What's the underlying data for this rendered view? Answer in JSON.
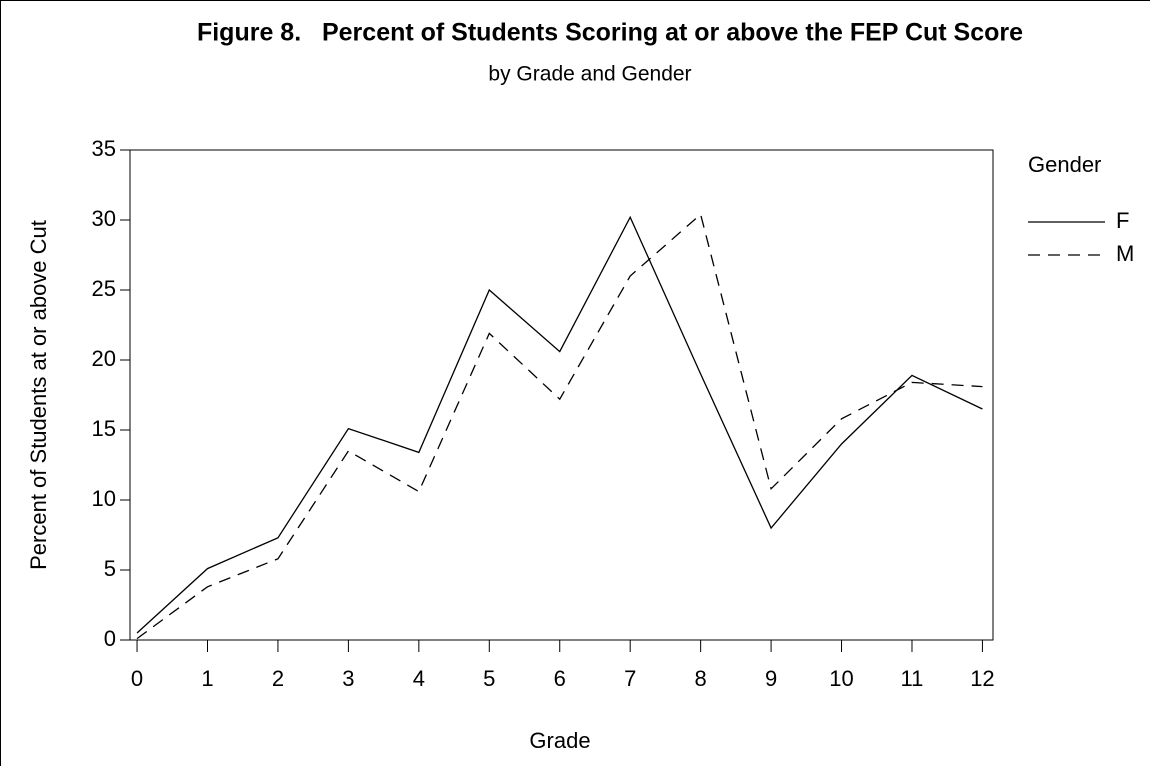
{
  "chart_data": {
    "type": "line",
    "title": "Figure 8.   Percent of Students Scoring at or above the FEP Cut Score",
    "subtitle": "by Grade and Gender",
    "x_label": "Grade",
    "y_label": "Percent of Students at or above Cut",
    "legend_title": "Gender",
    "legend_position": "right",
    "x": [
      0,
      1,
      2,
      3,
      4,
      5,
      6,
      7,
      8,
      9,
      10,
      11,
      12
    ],
    "series": [
      {
        "name": "F",
        "color": "#000000",
        "line_style": "solid",
        "values": [
          0.5,
          5.1,
          7.3,
          15.1,
          13.4,
          25.0,
          20.6,
          30.2,
          19.0,
          8.0,
          14.0,
          18.9,
          16.5
        ]
      },
      {
        "name": "M",
        "color": "#000000",
        "line_style": "dashed",
        "values": [
          0.1,
          3.8,
          5.8,
          13.5,
          10.6,
          21.9,
          17.2,
          26.0,
          30.4,
          10.8,
          15.8,
          18.4,
          18.1
        ]
      }
    ],
    "xlim": [
      -0.1,
      12.15
    ],
    "xticks": [
      0,
      1,
      2,
      3,
      4,
      5,
      6,
      7,
      8,
      9,
      10,
      11,
      12
    ],
    "ylim": [
      0,
      35
    ],
    "yticks": [
      0,
      5,
      10,
      15,
      20,
      25,
      30,
      35
    ],
    "grid": false
  }
}
